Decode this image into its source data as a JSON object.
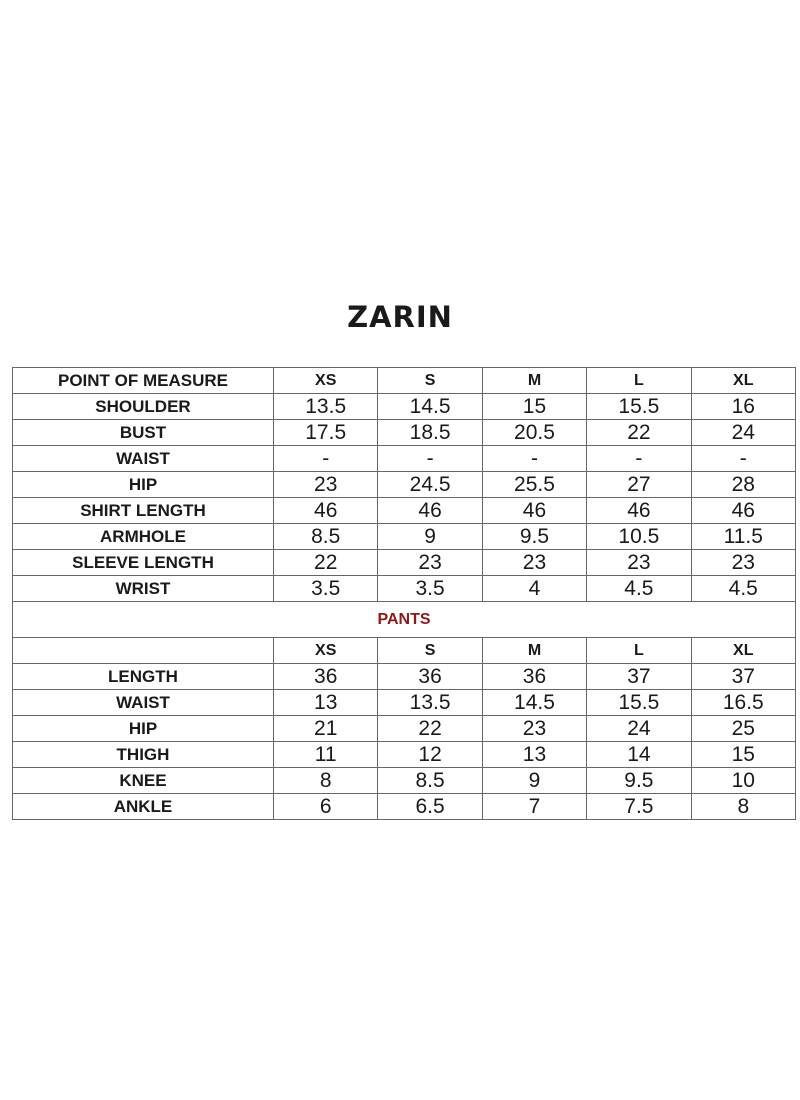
{
  "title": "ZARIN",
  "shirt": {
    "header": [
      "POINT OF MEASURE",
      "XS",
      "S",
      "M",
      "L",
      "XL"
    ],
    "rows": [
      {
        "label": "SHOULDER",
        "values": [
          "13.5",
          "14.5",
          "15",
          "15.5",
          "16"
        ]
      },
      {
        "label": "BUST",
        "values": [
          "17.5",
          "18.5",
          "20.5",
          "22",
          "24"
        ]
      },
      {
        "label": "WAIST",
        "values": [
          "-",
          "-",
          "-",
          "-",
          "-"
        ]
      },
      {
        "label": "HIP",
        "values": [
          "23",
          "24.5",
          "25.5",
          "27",
          "28"
        ]
      },
      {
        "label": "SHIRT LENGTH",
        "values": [
          "46",
          "46",
          "46",
          "46",
          "46"
        ]
      },
      {
        "label": "ARMHOLE",
        "values": [
          "8.5",
          "9",
          "9.5",
          "10.5",
          "11.5"
        ]
      },
      {
        "label": "SLEEVE LENGTH",
        "values": [
          "22",
          "23",
          "23",
          "23",
          "23"
        ]
      },
      {
        "label": "WRIST",
        "values": [
          "3.5",
          "3.5",
          "4",
          "4.5",
          "4.5"
        ]
      }
    ]
  },
  "pants": {
    "title": "PANTS",
    "title_color": "#8b1a1a",
    "header": [
      "",
      "XS",
      "S",
      "M",
      "L",
      "XL"
    ],
    "rows": [
      {
        "label": "LENGTH",
        "values": [
          "36",
          "36",
          "36",
          "37",
          "37"
        ]
      },
      {
        "label": "WAIST",
        "values": [
          "13",
          "13.5",
          "14.5",
          "15.5",
          "16.5"
        ]
      },
      {
        "label": "HIP",
        "values": [
          "21",
          "22",
          "23",
          "24",
          "25"
        ]
      },
      {
        "label": "THIGH",
        "values": [
          "11",
          "12",
          "13",
          "14",
          "15"
        ]
      },
      {
        "label": "KNEE",
        "values": [
          "8",
          "8.5",
          "9",
          "9.5",
          "10"
        ]
      },
      {
        "label": "ANKLE",
        "values": [
          "6",
          "6.5",
          "7",
          "7.5",
          "8"
        ]
      }
    ]
  }
}
